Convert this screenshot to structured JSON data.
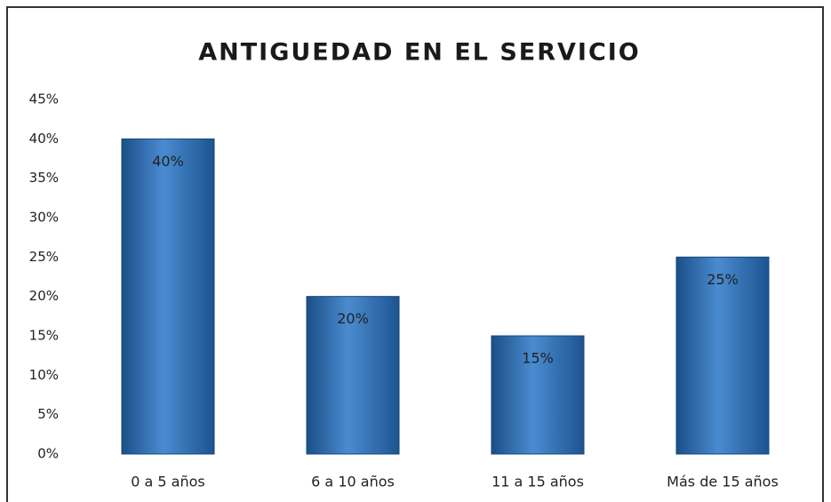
{
  "chart_data": {
    "type": "bar",
    "title": "ANTIGUEDAD EN EL SERVICIO",
    "categories": [
      "0 a 5 años",
      "6 a 10 años",
      "11 a 15 años",
      "Más de 15 años"
    ],
    "values": [
      40,
      20,
      15,
      25
    ],
    "value_labels": [
      "40%",
      "20%",
      "15%",
      "25%"
    ],
    "color": "#2e6fb3",
    "ylim": [
      0,
      45
    ],
    "yticks": [
      {
        "value": 0,
        "label": "0%"
      },
      {
        "value": 5,
        "label": "5%"
      },
      {
        "value": 10,
        "label": "10%"
      },
      {
        "value": 15,
        "label": "15%"
      },
      {
        "value": 20,
        "label": "20%"
      },
      {
        "value": 25,
        "label": "25%"
      },
      {
        "value": 30,
        "label": "30%"
      },
      {
        "value": 35,
        "label": "35%"
      },
      {
        "value": 40,
        "label": "40%"
      },
      {
        "value": 45,
        "label": "45%"
      }
    ],
    "grid": false
  }
}
